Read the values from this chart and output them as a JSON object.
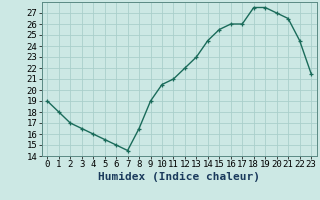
{
  "x": [
    0,
    1,
    2,
    3,
    4,
    5,
    6,
    7,
    8,
    9,
    10,
    11,
    12,
    13,
    14,
    15,
    16,
    17,
    18,
    19,
    20,
    21,
    22,
    23
  ],
  "y": [
    19,
    18,
    17,
    16.5,
    16,
    15.5,
    15,
    14.5,
    16.5,
    19,
    20.5,
    21,
    22,
    23,
    24.5,
    25.5,
    26,
    26,
    27.5,
    27.5,
    27,
    26.5,
    24.5,
    21.5
  ],
  "line_color": "#1a6b5a",
  "marker": "+",
  "marker_color": "#1a6b5a",
  "bg_color": "#cce8e4",
  "grid_color": "#aacfcb",
  "xlabel": "Humidex (Indice chaleur)",
  "xlim": [
    -0.5,
    23.5
  ],
  "ylim": [
    14,
    28
  ],
  "yticks": [
    14,
    15,
    16,
    17,
    18,
    19,
    20,
    21,
    22,
    23,
    24,
    25,
    26,
    27
  ],
  "xticks": [
    0,
    1,
    2,
    3,
    4,
    5,
    6,
    7,
    8,
    9,
    10,
    11,
    12,
    13,
    14,
    15,
    16,
    17,
    18,
    19,
    20,
    21,
    22,
    23
  ],
  "tick_labelsize": 6.5,
  "xlabel_fontsize": 8,
  "line_width": 1.0,
  "marker_size": 3.5
}
